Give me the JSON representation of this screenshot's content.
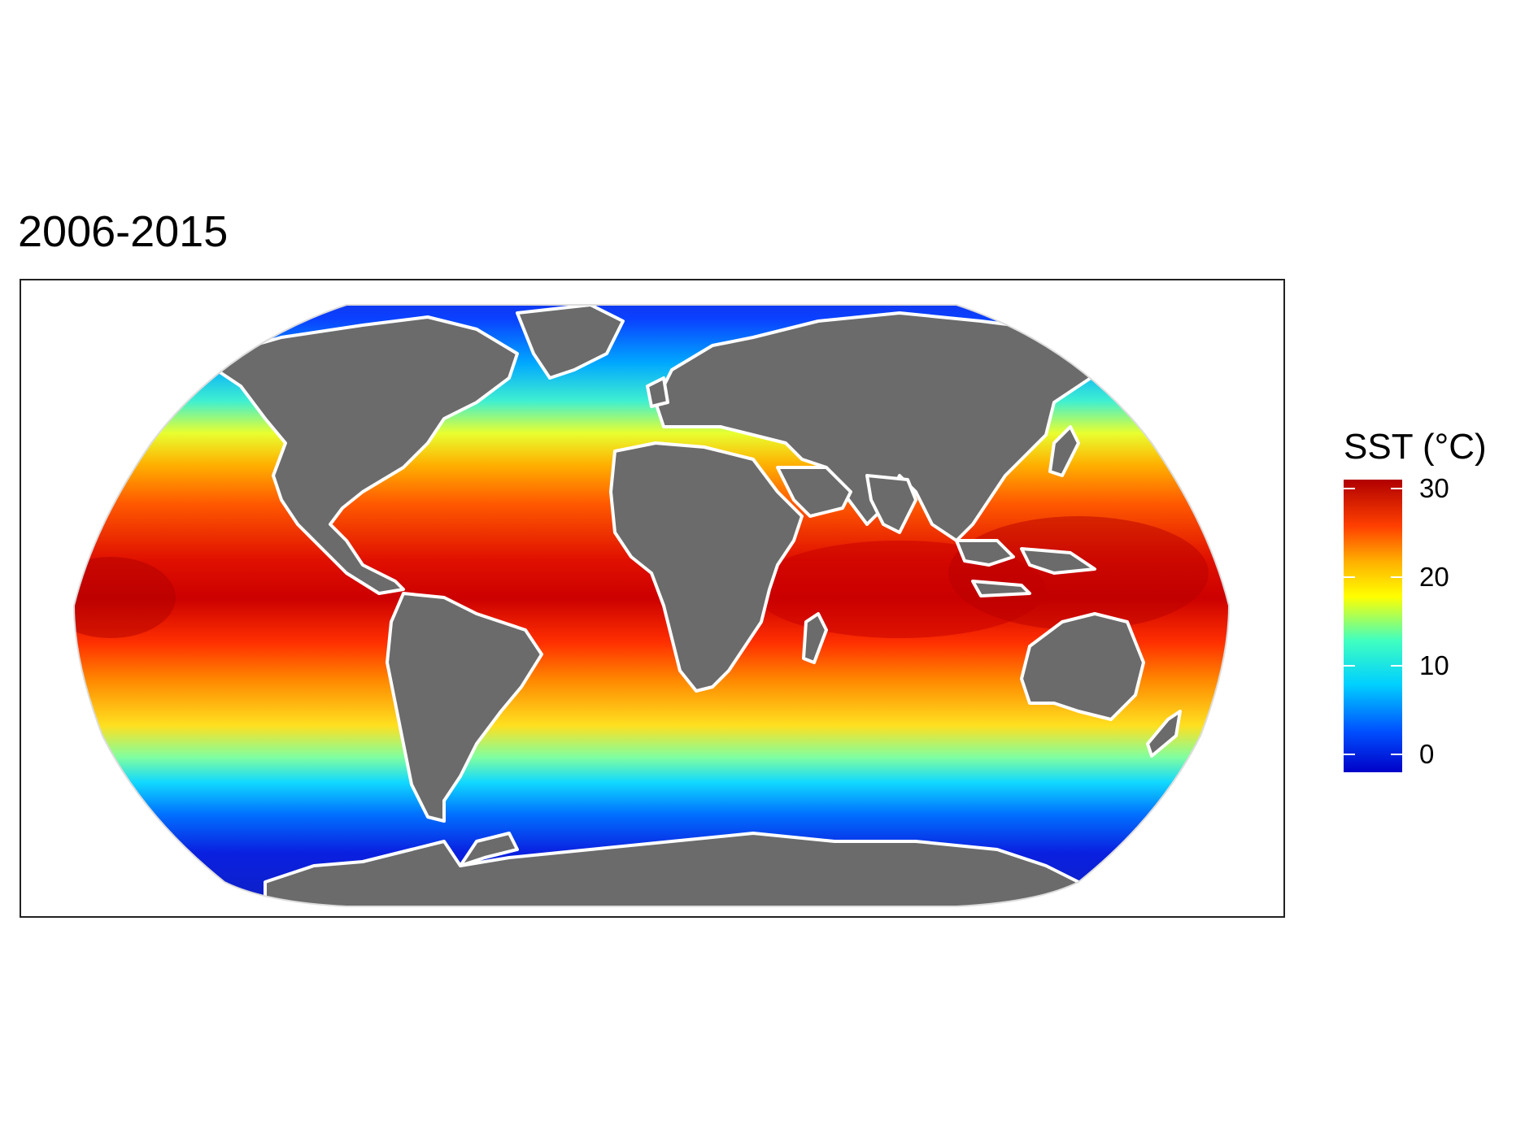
{
  "title": "2006-2015",
  "legend": {
    "title": "SST (°C)",
    "ticks": [
      {
        "value": 30,
        "label": "30"
      },
      {
        "value": 20,
        "label": "20"
      },
      {
        "value": 10,
        "label": "10"
      },
      {
        "value": 0,
        "label": "0"
      }
    ],
    "range": [
      -2,
      31
    ],
    "colors": [
      "#0000c8",
      "#0060ff",
      "#00c8ff",
      "#30ffd0",
      "#a0ff60",
      "#ffff00",
      "#ffb000",
      "#ff5000",
      "#e00000",
      "#b00000"
    ]
  },
  "map": {
    "projection": "Robinson",
    "land_color": "#6b6b6b",
    "coast_color": "#ffffff",
    "ocean_variable": "sea surface temperature"
  }
}
